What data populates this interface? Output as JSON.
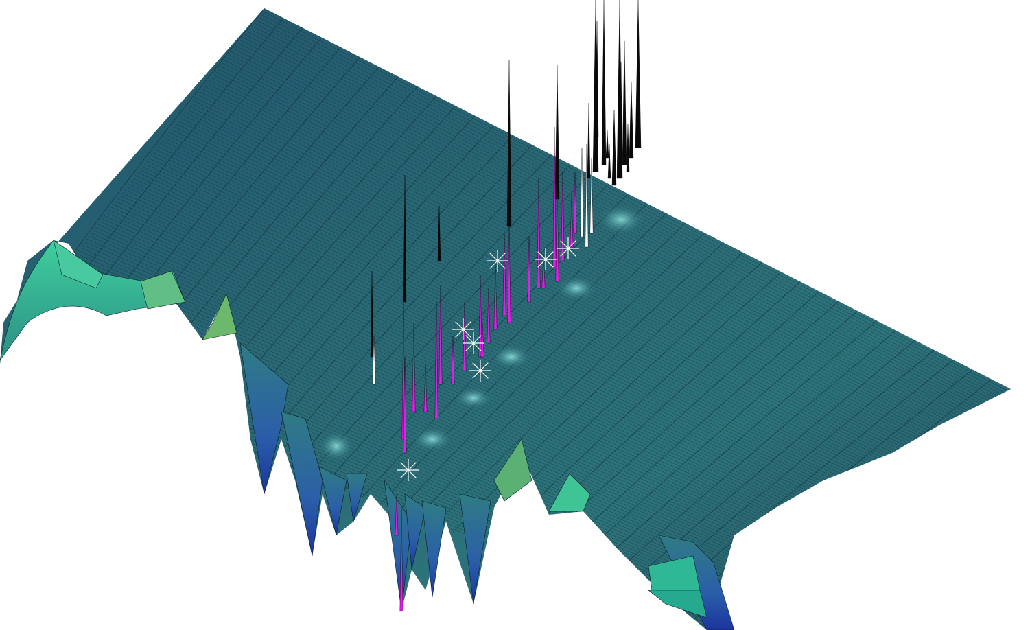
{
  "scene": {
    "description_key": "3d-surface-plot",
    "colors": {
      "background": "#ffffff",
      "surface_dark": "#1f4a5a",
      "surface_mid": "#2a6b78",
      "surface_light": "#3f8f8c",
      "lobe_green": "#3ec49a",
      "lobe_blue": "#2346b0",
      "spike_magenta": "#e020e8",
      "spike_black": "#0a0a0a",
      "spike_white": "#ffffff",
      "mesh_line": "#0b1f25"
    },
    "star_markers": 7,
    "magenta_spikes": 24,
    "black_spikes": 30
  }
}
